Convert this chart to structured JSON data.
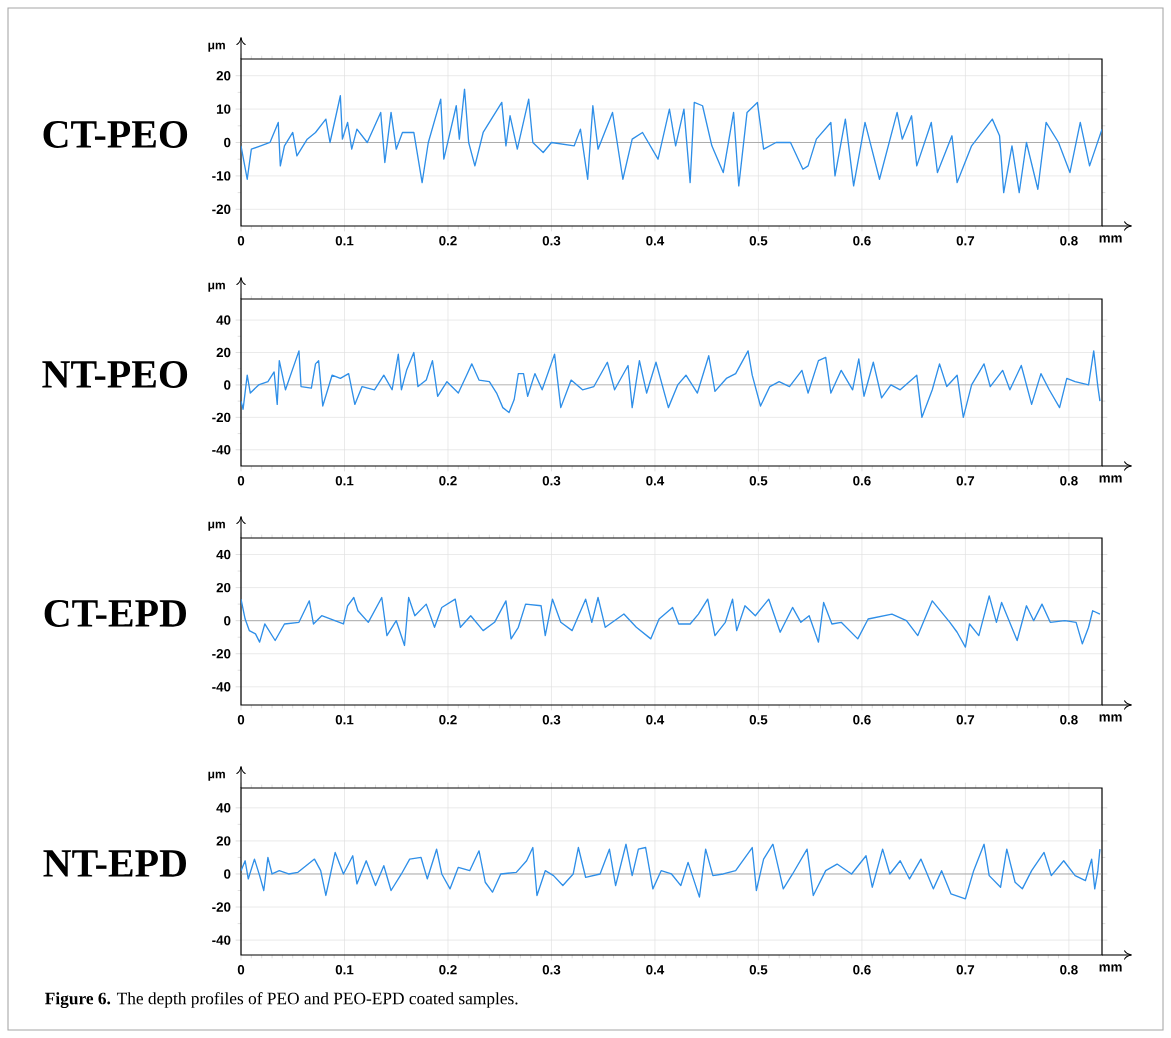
{
  "chart_data": [
    {
      "type": "line",
      "title": "CT-PEO",
      "xlabel": "mm",
      "ylabel": "μm",
      "xlim": [
        0,
        0.832
      ],
      "ylim": [
        -25,
        25
      ],
      "xticks": [
        0,
        0.1,
        0.2,
        0.3,
        0.4,
        0.5,
        0.6,
        0.7,
        0.8
      ],
      "yticks": [
        -20,
        -10,
        0,
        10,
        20
      ],
      "grid": true,
      "marker": "none",
      "line_style": "solid",
      "ref_lines": [
        {
          "axis": "y",
          "value": 0,
          "color": "#8c8c8c"
        }
      ],
      "x": [
        0.0,
        0.006,
        0.01,
        0.019,
        0.028,
        0.036,
        0.038,
        0.042,
        0.05,
        0.054,
        0.064,
        0.072,
        0.082,
        0.086,
        0.096,
        0.098,
        0.103,
        0.107,
        0.112,
        0.122,
        0.135,
        0.139,
        0.145,
        0.15,
        0.156,
        0.167,
        0.175,
        0.181,
        0.193,
        0.196,
        0.208,
        0.211,
        0.216,
        0.22,
        0.226,
        0.234,
        0.252,
        0.256,
        0.26,
        0.267,
        0.278,
        0.282,
        0.292,
        0.3,
        0.322,
        0.328,
        0.335,
        0.34,
        0.345,
        0.359,
        0.369,
        0.378,
        0.388,
        0.403,
        0.414,
        0.42,
        0.428,
        0.434,
        0.438,
        0.446,
        0.455,
        0.466,
        0.476,
        0.481,
        0.489,
        0.499,
        0.505,
        0.517,
        0.531,
        0.543,
        0.548,
        0.556,
        0.57,
        0.574,
        0.584,
        0.592,
        0.603,
        0.617,
        0.634,
        0.639,
        0.648,
        0.653,
        0.667,
        0.673,
        0.687,
        0.692,
        0.706,
        0.726,
        0.733,
        0.737,
        0.745,
        0.752,
        0.759,
        0.77,
        0.778,
        0.79,
        0.801,
        0.811,
        0.82,
        0.832
      ],
      "series": [
        {
          "color": "#2f8fe8",
          "values": [
            -1,
            -11,
            -2,
            -1,
            0,
            6,
            -7,
            -1,
            3,
            -4,
            1,
            3,
            7,
            0,
            14,
            1,
            6,
            -2,
            4,
            0,
            9,
            -6,
            9,
            -2,
            3,
            3,
            -12,
            0,
            13,
            -5,
            11,
            1,
            16,
            0,
            -7,
            3,
            12,
            -1,
            8,
            -2,
            13,
            0,
            -3,
            0,
            -1,
            4,
            -11,
            11,
            -2,
            9,
            -11,
            1,
            3,
            -5,
            10,
            -1,
            10,
            -12,
            12,
            11,
            -1,
            -9,
            9,
            -13,
            9,
            12,
            -2,
            0,
            0,
            -8,
            -7,
            1,
            6,
            -10,
            7,
            -13,
            6,
            -11,
            9,
            1,
            8,
            -7,
            6,
            -9,
            2,
            -12,
            -1,
            7,
            2,
            -15,
            -1,
            -15,
            0,
            -14,
            6,
            0,
            -9,
            6,
            -7,
            4
          ]
        }
      ]
    },
    {
      "type": "line",
      "title": "NT-PEO",
      "xlabel": "mm",
      "ylabel": "μm",
      "xlim": [
        0,
        0.832
      ],
      "ylim": [
        -50,
        53
      ],
      "xticks": [
        0,
        0.1,
        0.2,
        0.3,
        0.4,
        0.5,
        0.6,
        0.7,
        0.8
      ],
      "yticks": [
        -40,
        -20,
        0,
        20,
        40
      ],
      "grid": true,
      "marker": "none",
      "line_style": "solid",
      "ref_lines": [
        {
          "axis": "y",
          "value": 0,
          "color": "#8c8c8c"
        }
      ],
      "x": [
        0.0,
        0.002,
        0.006,
        0.009,
        0.017,
        0.026,
        0.032,
        0.035,
        0.037,
        0.043,
        0.056,
        0.058,
        0.068,
        0.072,
        0.075,
        0.079,
        0.088,
        0.096,
        0.104,
        0.11,
        0.117,
        0.129,
        0.138,
        0.146,
        0.152,
        0.155,
        0.16,
        0.167,
        0.171,
        0.179,
        0.185,
        0.19,
        0.199,
        0.21,
        0.218,
        0.223,
        0.23,
        0.24,
        0.247,
        0.253,
        0.259,
        0.264,
        0.268,
        0.273,
        0.277,
        0.284,
        0.291,
        0.303,
        0.309,
        0.319,
        0.33,
        0.341,
        0.354,
        0.361,
        0.374,
        0.378,
        0.385,
        0.392,
        0.401,
        0.413,
        0.422,
        0.43,
        0.441,
        0.452,
        0.458,
        0.469,
        0.478,
        0.49,
        0.494,
        0.502,
        0.511,
        0.52,
        0.53,
        0.542,
        0.548,
        0.558,
        0.565,
        0.57,
        0.58,
        0.591,
        0.597,
        0.602,
        0.611,
        0.619,
        0.628,
        0.637,
        0.653,
        0.658,
        0.668,
        0.675,
        0.682,
        0.692,
        0.698,
        0.706,
        0.718,
        0.724,
        0.736,
        0.743,
        0.754,
        0.764,
        0.773,
        0.781,
        0.791,
        0.798,
        0.806,
        0.819,
        0.824,
        0.828,
        0.83
      ],
      "series": [
        {
          "color": "#2f8fe8",
          "values": [
            -10,
            -15,
            6,
            -5,
            0,
            2,
            8,
            -12,
            15,
            -3,
            21,
            -1,
            -2,
            13,
            15,
            -13,
            6,
            4,
            7,
            -12,
            -1,
            -3,
            6,
            -3,
            19,
            -3,
            9,
            20,
            -1,
            3,
            15,
            -7,
            2,
            -5,
            6,
            13,
            3,
            2,
            -5,
            -14,
            -17,
            -9,
            7,
            7,
            -7,
            7,
            -3,
            19,
            -14,
            3,
            -3,
            -1,
            14,
            -3,
            12,
            -14,
            15,
            -5,
            14,
            -14,
            0,
            6,
            -5,
            18,
            -4,
            4,
            7,
            21,
            6,
            -13,
            -1,
            2,
            -1,
            9,
            -5,
            15,
            17,
            -5,
            9,
            -3,
            16,
            -7,
            14,
            -8,
            0,
            -3,
            6,
            -20,
            -3,
            13,
            -1,
            6,
            -20,
            0,
            13,
            -1,
            9,
            -3,
            12,
            -12,
            7,
            -3,
            -14,
            4,
            2,
            0,
            21,
            -1,
            -10
          ]
        }
      ]
    },
    {
      "type": "line",
      "title": "CT-EPD",
      "xlabel": "mm",
      "ylabel": "μm",
      "xlim": [
        0,
        0.832
      ],
      "ylim": [
        -51,
        50
      ],
      "xticks": [
        0,
        0.1,
        0.2,
        0.3,
        0.4,
        0.5,
        0.6,
        0.7,
        0.8
      ],
      "yticks": [
        -40,
        -20,
        0,
        20,
        40
      ],
      "grid": true,
      "marker": "none",
      "line_style": "solid",
      "ref_lines": [
        {
          "axis": "y",
          "value": 0,
          "color": "#8c8c8c"
        }
      ],
      "x": [
        0.0,
        0.004,
        0.008,
        0.014,
        0.018,
        0.023,
        0.033,
        0.042,
        0.056,
        0.066,
        0.07,
        0.078,
        0.099,
        0.103,
        0.109,
        0.113,
        0.123,
        0.136,
        0.141,
        0.15,
        0.158,
        0.162,
        0.168,
        0.179,
        0.187,
        0.194,
        0.207,
        0.212,
        0.222,
        0.234,
        0.245,
        0.256,
        0.261,
        0.268,
        0.275,
        0.29,
        0.294,
        0.301,
        0.309,
        0.32,
        0.333,
        0.339,
        0.345,
        0.352,
        0.37,
        0.382,
        0.396,
        0.404,
        0.417,
        0.423,
        0.434,
        0.442,
        0.451,
        0.458,
        0.468,
        0.475,
        0.479,
        0.487,
        0.497,
        0.51,
        0.521,
        0.533,
        0.541,
        0.549,
        0.558,
        0.563,
        0.571,
        0.58,
        0.596,
        0.606,
        0.629,
        0.643,
        0.654,
        0.668,
        0.685,
        0.692,
        0.7,
        0.704,
        0.713,
        0.723,
        0.73,
        0.735,
        0.75,
        0.759,
        0.766,
        0.774,
        0.782,
        0.796,
        0.807,
        0.813,
        0.819,
        0.823,
        0.83
      ],
      "series": [
        {
          "color": "#2f8fe8",
          "values": [
            13,
            1,
            -6,
            -8,
            -13,
            -2,
            -12,
            -2,
            -1,
            12,
            -2,
            3,
            -2,
            9,
            14,
            6,
            -1,
            14,
            -9,
            0,
            -15,
            14,
            3,
            10,
            -4,
            8,
            13,
            -4,
            3,
            -6,
            -1,
            12,
            -11,
            -4,
            10,
            9,
            -9,
            13,
            -1,
            -6,
            13,
            -1,
            14,
            -4,
            4,
            -4,
            -11,
            1,
            8,
            -2,
            -2,
            4,
            13,
            -9,
            -1,
            13,
            -6,
            9,
            3,
            13,
            -7,
            8,
            -1,
            3,
            -13,
            11,
            -2,
            -1,
            -11,
            1,
            4,
            0,
            -9,
            12,
            -1,
            -7,
            -16,
            -2,
            -9,
            15,
            -1,
            11,
            -12,
            9,
            0,
            10,
            -1,
            0,
            -1,
            -14,
            -4,
            6,
            4
          ]
        }
      ]
    },
    {
      "type": "line",
      "title": "NT-EPD",
      "xlabel": "mm",
      "ylabel": "μm",
      "xlim": [
        0,
        0.832
      ],
      "ylim": [
        -49,
        52
      ],
      "xticks": [
        0,
        0.1,
        0.2,
        0.3,
        0.4,
        0.5,
        0.6,
        0.7,
        0.8
      ],
      "yticks": [
        -40,
        -20,
        0,
        20,
        40
      ],
      "grid": true,
      "marker": "none",
      "line_style": "solid",
      "ref_lines": [
        {
          "axis": "y",
          "value": 0,
          "color": "#8c8c8c"
        }
      ],
      "annotations": [
        "**Figure 6.** The depth profiles of PEO and PEO-EPD coated samples."
      ],
      "x": [
        0.0,
        0.004,
        0.007,
        0.013,
        0.018,
        0.022,
        0.026,
        0.03,
        0.037,
        0.046,
        0.055,
        0.071,
        0.077,
        0.082,
        0.091,
        0.099,
        0.108,
        0.112,
        0.121,
        0.13,
        0.138,
        0.145,
        0.155,
        0.163,
        0.174,
        0.18,
        0.189,
        0.194,
        0.202,
        0.21,
        0.221,
        0.23,
        0.236,
        0.243,
        0.251,
        0.266,
        0.276,
        0.282,
        0.286,
        0.294,
        0.302,
        0.311,
        0.321,
        0.326,
        0.333,
        0.347,
        0.356,
        0.362,
        0.372,
        0.378,
        0.384,
        0.391,
        0.398,
        0.406,
        0.416,
        0.425,
        0.432,
        0.443,
        0.449,
        0.456,
        0.466,
        0.478,
        0.494,
        0.498,
        0.505,
        0.514,
        0.524,
        0.533,
        0.547,
        0.553,
        0.565,
        0.576,
        0.59,
        0.604,
        0.61,
        0.62,
        0.627,
        0.637,
        0.646,
        0.657,
        0.669,
        0.677,
        0.686,
        0.7,
        0.708,
        0.718,
        0.723,
        0.734,
        0.74,
        0.748,
        0.755,
        0.764,
        0.776,
        0.783,
        0.795,
        0.806,
        0.816,
        0.822,
        0.825,
        0.828,
        0.83
      ],
      "series": [
        {
          "color": "#2f8fe8",
          "values": [
            2,
            8,
            -3,
            9,
            -1,
            -10,
            10,
            0,
            2,
            0,
            1,
            9,
            2,
            -13,
            13,
            0,
            11,
            -6,
            8,
            -7,
            5,
            -10,
            0,
            9,
            10,
            -3,
            15,
            0,
            -9,
            4,
            2,
            14,
            -5,
            -11,
            0,
            1,
            8,
            16,
            -13,
            2,
            -1,
            -7,
            0,
            16,
            -2,
            0,
            15,
            -7,
            18,
            -1,
            15,
            16,
            -9,
            2,
            0,
            -7,
            7,
            -14,
            15,
            -1,
            0,
            2,
            16,
            -10,
            9,
            18,
            -9,
            0,
            15,
            -13,
            2,
            6,
            0,
            11,
            -8,
            15,
            0,
            8,
            -3,
            9,
            -9,
            2,
            -12,
            -15,
            2,
            18,
            -1,
            -8,
            15,
            -5,
            -9,
            2,
            13,
            -1,
            8,
            -1,
            -4,
            9,
            -9,
            2,
            15
          ]
        }
      ]
    }
  ]
}
